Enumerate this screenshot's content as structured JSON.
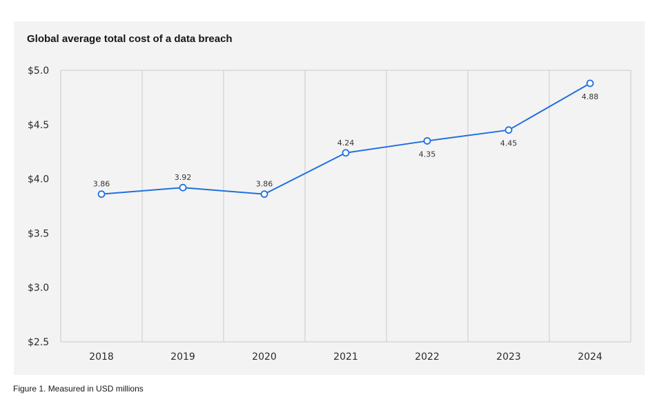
{
  "figure_caption": "Figure 1. Measured in USD millions",
  "colors": {
    "line": "#1f6fe0",
    "grid": "#c8c8c8",
    "panel": "#f3f3f3"
  },
  "chart_data": {
    "type": "line",
    "title": "Global average total cost of a data breach",
    "xlabel": "",
    "ylabel": "",
    "categories": [
      "2018",
      "2019",
      "2020",
      "2021",
      "2022",
      "2023",
      "2024"
    ],
    "series": [
      {
        "values": [
          3.86,
          3.92,
          3.86,
          4.24,
          4.35,
          4.45,
          4.88
        ]
      }
    ],
    "point_labels": [
      "3.86",
      "3.92",
      "3.86",
      "4.24",
      "4.35",
      "4.45",
      "4.88"
    ],
    "label_positions": [
      "above",
      "above",
      "above",
      "above",
      "below",
      "below",
      "below"
    ],
    "ylim": [
      2.5,
      5.0
    ],
    "yticks": [
      2.5,
      3.0,
      3.5,
      4.0,
      4.5,
      5.0
    ],
    "ytick_labels": [
      "$2.5",
      "$3.0",
      "$3.5",
      "$4.0",
      "$4.5",
      "$5.0"
    ],
    "grid": "vertical",
    "legend": "none"
  }
}
